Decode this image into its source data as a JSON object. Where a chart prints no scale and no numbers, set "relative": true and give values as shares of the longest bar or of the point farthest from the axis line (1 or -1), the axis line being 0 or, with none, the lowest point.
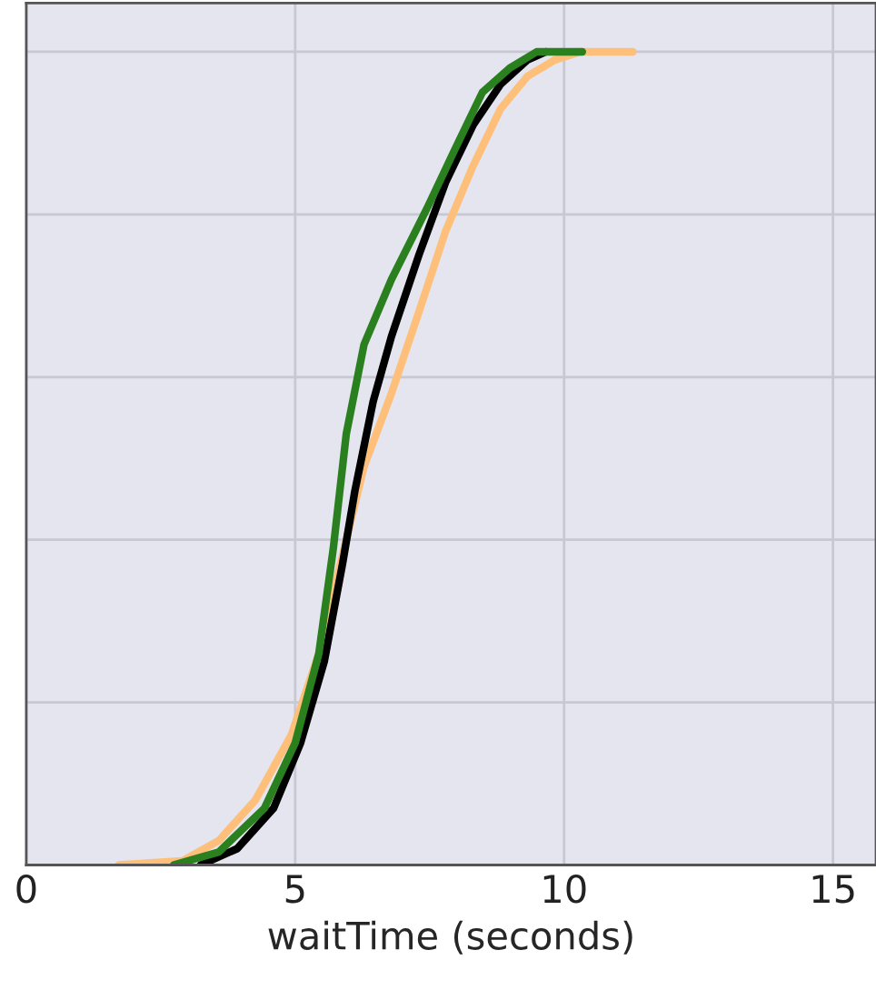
{
  "chart_data": {
    "type": "line",
    "xlabel": "waitTime (seconds)",
    "relative": true,
    "tick_labels": "x",
    "grid": true,
    "xlim": [
      0,
      15.8
    ],
    "xticks": [
      0,
      5,
      10,
      15
    ],
    "series": [
      {
        "color": "#fdbf7a",
        "x": [
          1.72,
          2.9,
          3.58,
          4.26,
          4.93,
          5.44,
          5.95,
          6.28,
          6.79,
          7.3,
          7.8,
          8.31,
          8.82,
          9.32,
          9.83,
          10.3,
          11.28
        ],
        "values": [
          0,
          0.005,
          0.03,
          0.08,
          0.16,
          0.26,
          0.4,
          0.49,
          0.58,
          0.68,
          0.78,
          0.86,
          0.93,
          0.97,
          0.99,
          1.0,
          1.0
        ]
      },
      {
        "color": "#000000",
        "x": [
          3.24,
          3.92,
          4.6,
          5.1,
          5.54,
          5.88,
          6.11,
          6.45,
          6.79,
          7.3,
          7.8,
          8.31,
          8.82,
          9.32,
          9.66
        ],
        "values": [
          0,
          0.02,
          0.07,
          0.15,
          0.25,
          0.37,
          0.46,
          0.57,
          0.65,
          0.75,
          0.84,
          0.91,
          0.96,
          0.99,
          1.0
        ]
      },
      {
        "color": "#2a7f1e",
        "x": [
          2.74,
          3.58,
          4.43,
          5.0,
          5.44,
          5.71,
          5.95,
          6.28,
          6.79,
          7.47,
          7.97,
          8.48,
          8.99,
          9.49,
          10.34
        ],
        "values": [
          0,
          0.016,
          0.07,
          0.15,
          0.26,
          0.39,
          0.53,
          0.64,
          0.72,
          0.81,
          0.88,
          0.95,
          0.98,
          1.0,
          1.0
        ]
      }
    ]
  }
}
